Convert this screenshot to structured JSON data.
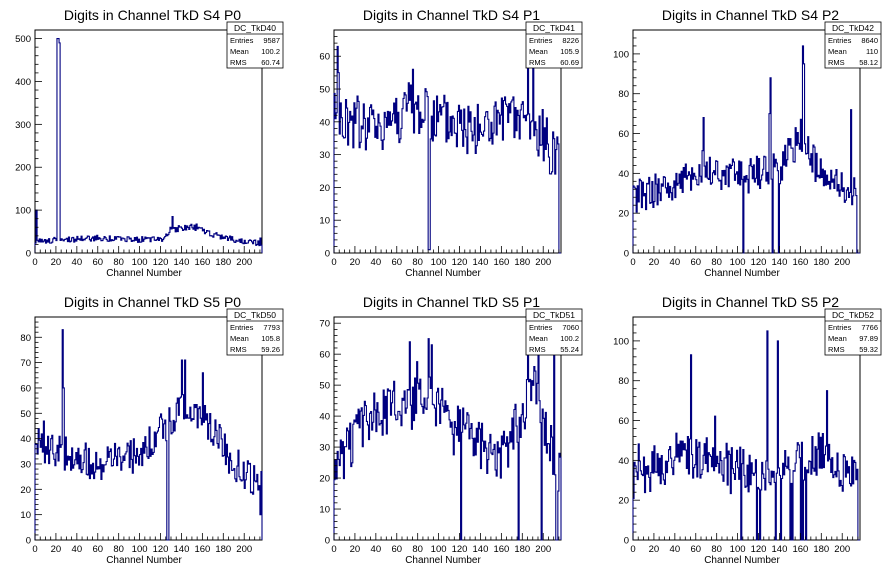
{
  "chart_data": [
    {
      "type": "histogram",
      "title": "Digits in Channel TkD S4 P0",
      "xlabel": "Channel Number",
      "ylabel": "",
      "xlim": [
        0,
        217
      ],
      "ylim": [
        0,
        520
      ],
      "xticks": [
        0,
        20,
        40,
        60,
        80,
        100,
        120,
        140,
        160,
        180,
        200
      ],
      "yticks": [
        0,
        100,
        200,
        300,
        400,
        500
      ],
      "grid": false,
      "color": "#000080",
      "stats": {
        "name": "DC_TkD40",
        "entries": "9587",
        "mean": "100.2",
        "rms": "60.74"
      },
      "seed": 40,
      "baseline": [
        [
          0,
          28
        ],
        [
          60,
          35
        ],
        [
          120,
          30
        ],
        [
          130,
          55
        ],
        [
          150,
          60
        ],
        [
          180,
          35
        ],
        [
          217,
          22
        ]
      ],
      "noise": 7,
      "spikes": [
        [
          1,
          100
        ],
        [
          21,
          500
        ],
        [
          22,
          500
        ],
        [
          23,
          490
        ],
        [
          129,
          60
        ],
        [
          131,
          85
        ]
      ],
      "dips": []
    },
    {
      "type": "histogram",
      "title": "Digits in Channel TkD S4 P1",
      "xlabel": "Channel Number",
      "ylabel": "",
      "xlim": [
        0,
        217
      ],
      "ylim": [
        0,
        68
      ],
      "xticks": [
        0,
        20,
        40,
        60,
        80,
        100,
        120,
        140,
        160,
        180,
        200
      ],
      "yticks": [
        0,
        10,
        20,
        30,
        40,
        50,
        60
      ],
      "grid": false,
      "color": "#000080",
      "stats": {
        "name": "DC_TkD41",
        "entries": "8226",
        "mean": "105.9",
        "rms": "60.69"
      },
      "seed": 41,
      "baseline": [
        [
          0,
          40
        ],
        [
          40,
          38
        ],
        [
          70,
          44
        ],
        [
          100,
          40
        ],
        [
          140,
          38
        ],
        [
          180,
          40
        ],
        [
          217,
          30
        ]
      ],
      "noise": 9,
      "spikes": [
        [
          3,
          63
        ],
        [
          4,
          55
        ],
        [
          75,
          56
        ],
        [
          185,
          65
        ],
        [
          190,
          58
        ]
      ],
      "dips": [
        [
          90,
          1
        ],
        [
          91,
          1
        ],
        [
          215,
          0
        ],
        [
          216,
          0
        ]
      ]
    },
    {
      "type": "histogram",
      "title": "Digits in Channel TkD S4 P2",
      "xlabel": "Channel Number",
      "ylabel": "",
      "xlim": [
        0,
        217
      ],
      "ylim": [
        0,
        112
      ],
      "xticks": [
        0,
        20,
        40,
        60,
        80,
        100,
        120,
        140,
        160,
        180,
        200
      ],
      "yticks": [
        0,
        20,
        40,
        60,
        80,
        100
      ],
      "grid": false,
      "color": "#000080",
      "stats": {
        "name": "DC_TkD42",
        "entries": "8640",
        "mean": "110",
        "rms": "58.12"
      },
      "seed": 42,
      "baseline": [
        [
          0,
          28
        ],
        [
          40,
          35
        ],
        [
          70,
          42
        ],
        [
          100,
          38
        ],
        [
          140,
          42
        ],
        [
          160,
          60
        ],
        [
          180,
          38
        ],
        [
          217,
          30
        ]
      ],
      "noise": 9,
      "spikes": [
        [
          67,
          68
        ],
        [
          130,
          70
        ],
        [
          131,
          88
        ],
        [
          162,
          104
        ],
        [
          163,
          95
        ],
        [
          208,
          72
        ]
      ],
      "dips": [
        [
          105,
          0
        ],
        [
          133,
          0
        ],
        [
          139,
          0
        ],
        [
          214,
          0
        ],
        [
          215,
          0
        ],
        [
          216,
          0
        ]
      ]
    },
    {
      "type": "histogram",
      "title": "Digits in Channel TkD S5 P0",
      "xlabel": "Channel Number",
      "ylabel": "",
      "xlim": [
        0,
        217
      ],
      "ylim": [
        0,
        88
      ],
      "xticks": [
        0,
        20,
        40,
        60,
        80,
        100,
        120,
        140,
        160,
        180,
        200
      ],
      "yticks": [
        0,
        10,
        20,
        30,
        40,
        50,
        60,
        70,
        80
      ],
      "grid": false,
      "color": "#000080",
      "stats": {
        "name": "DC_TkD50",
        "entries": "7793",
        "mean": "105.8",
        "rms": "59.26"
      },
      "seed": 50,
      "baseline": [
        [
          0,
          38
        ],
        [
          30,
          34
        ],
        [
          60,
          30
        ],
        [
          100,
          34
        ],
        [
          140,
          52
        ],
        [
          160,
          50
        ],
        [
          190,
          30
        ],
        [
          217,
          22
        ]
      ],
      "noise": 7,
      "spikes": [
        [
          26,
          83
        ],
        [
          27,
          60
        ],
        [
          140,
          71
        ],
        [
          143,
          71
        ],
        [
          160,
          66
        ]
      ],
      "dips": [
        [
          126,
          0
        ],
        [
          127,
          0
        ],
        [
          215,
          10
        ]
      ]
    },
    {
      "type": "histogram",
      "title": "Digits in Channel TkD S5 P1",
      "xlabel": "Channel Number",
      "ylabel": "",
      "xlim": [
        0,
        217
      ],
      "ylim": [
        0,
        72
      ],
      "xticks": [
        0,
        20,
        40,
        60,
        80,
        100,
        120,
        140,
        160,
        180,
        200
      ],
      "yticks": [
        0,
        10,
        20,
        30,
        40,
        50,
        60,
        70
      ],
      "grid": false,
      "color": "#000080",
      "stats": {
        "name": "DC_TkD51",
        "entries": "7060",
        "mean": "100.2",
        "rms": "55.24"
      },
      "seed": 51,
      "baseline": [
        [
          0,
          22
        ],
        [
          30,
          38
        ],
        [
          60,
          44
        ],
        [
          90,
          46
        ],
        [
          120,
          36
        ],
        [
          160,
          26
        ],
        [
          190,
          50
        ],
        [
          217,
          20
        ]
      ],
      "noise": 8,
      "spikes": [
        [
          72,
          64
        ],
        [
          90,
          65
        ],
        [
          185,
          70
        ],
        [
          195,
          70
        ],
        [
          210,
          70
        ]
      ],
      "dips": [
        [
          121,
          0
        ],
        [
          176,
          0
        ],
        [
          198,
          0
        ],
        [
          212,
          0
        ],
        [
          213,
          0
        ]
      ]
    },
    {
      "type": "histogram",
      "title": "Digits in Channel TkD S5 P2",
      "xlabel": "Channel Number",
      "ylabel": "",
      "xlim": [
        0,
        217
      ],
      "ylim": [
        0,
        112
      ],
      "xticks": [
        0,
        20,
        40,
        60,
        80,
        100,
        120,
        140,
        160,
        180,
        200
      ],
      "yticks": [
        0,
        20,
        40,
        60,
        80,
        100
      ],
      "grid": false,
      "color": "#000080",
      "stats": {
        "name": "DC_TkD52",
        "entries": "7766",
        "mean": "97.89",
        "rms": "59.32"
      },
      "seed": 52,
      "baseline": [
        [
          0,
          28
        ],
        [
          30,
          38
        ],
        [
          60,
          42
        ],
        [
          100,
          36
        ],
        [
          130,
          30
        ],
        [
          180,
          44
        ],
        [
          217,
          28
        ]
      ],
      "noise": 11,
      "spikes": [
        [
          55,
          93
        ],
        [
          128,
          105
        ],
        [
          138,
          100
        ],
        [
          185,
          75
        ]
      ],
      "dips": [
        [
          103,
          0
        ],
        [
          118,
          0
        ],
        [
          121,
          0
        ],
        [
          136,
          0
        ],
        [
          141,
          0
        ],
        [
          150,
          0
        ],
        [
          152,
          0
        ],
        [
          160,
          0
        ],
        [
          162,
          0
        ],
        [
          165,
          0
        ],
        [
          215,
          0
        ],
        [
          216,
          0
        ]
      ]
    }
  ],
  "stat_labels": {
    "entries": "Entries",
    "mean": "Mean",
    "rms": "RMS"
  }
}
